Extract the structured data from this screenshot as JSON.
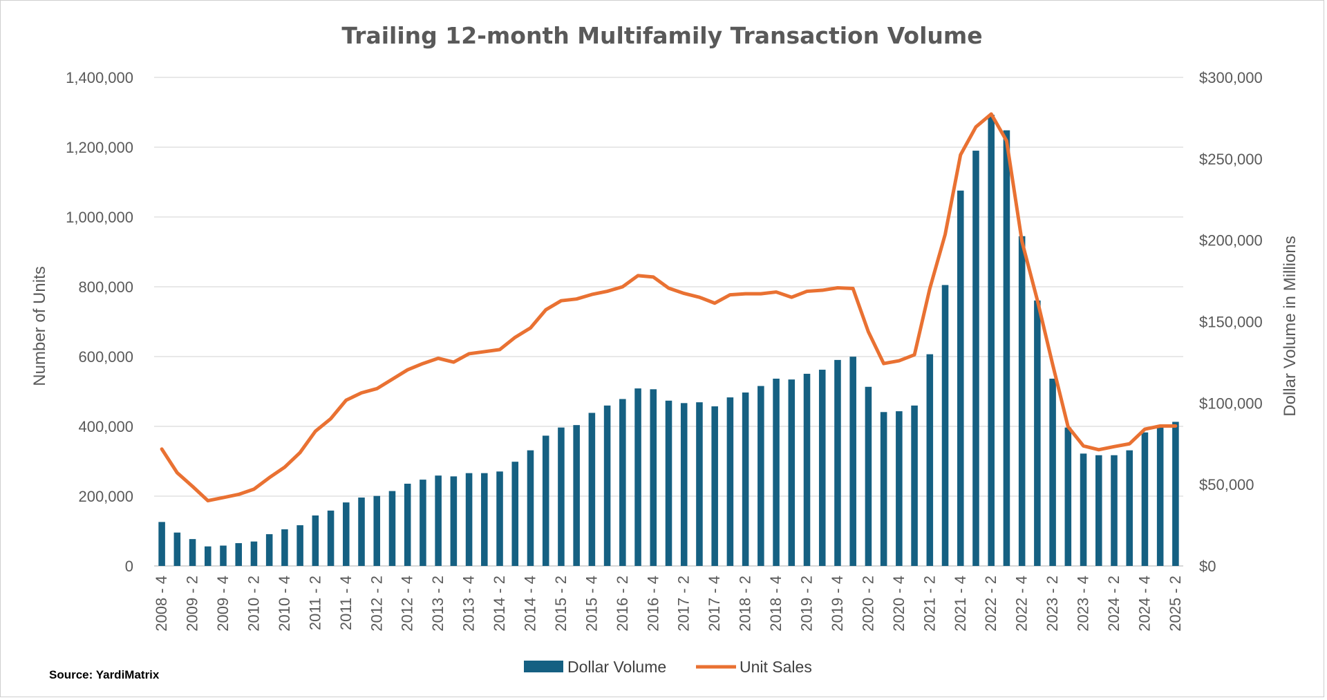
{
  "chart_data": {
    "type": "bar-line-combo",
    "title": "Trailing 12-month Multifamily Transaction Volume",
    "source": "Source: YardiMatrix",
    "y_left_label": "Number of Units",
    "y_right_label": "Dollar Volume in Millions",
    "y_left_lim": [
      0,
      1400000
    ],
    "y_right_lim": [
      0,
      300000
    ],
    "y_left_ticks": [
      {
        "value": 0,
        "label": "0"
      },
      {
        "value": 200000,
        "label": "200,000"
      },
      {
        "value": 400000,
        "label": "400,000"
      },
      {
        "value": 600000,
        "label": "600,000"
      },
      {
        "value": 800000,
        "label": "800,000"
      },
      {
        "value": 1000000,
        "label": "1,000,000"
      },
      {
        "value": 1200000,
        "label": "1,200,000"
      },
      {
        "value": 1400000,
        "label": "1,400,000"
      }
    ],
    "y_right_ticks": [
      {
        "value": 0,
        "label": "$0"
      },
      {
        "value": 50000,
        "label": "$50,000"
      },
      {
        "value": 100000,
        "label": "$100,000"
      },
      {
        "value": 150000,
        "label": "$150,000"
      },
      {
        "value": 200000,
        "label": "$200,000"
      },
      {
        "value": 250000,
        "label": "$250,000"
      },
      {
        "value": 300000,
        "label": "$300,000"
      }
    ],
    "gridlines": true,
    "legend_position": "bottom-center",
    "categories": [
      "2008 - 4",
      "2009 - 1",
      "2009 - 2",
      "2009 - 3",
      "2009 - 4",
      "2010 - 1",
      "2010 - 2",
      "2010 - 3",
      "2010 - 4",
      "2011 - 1",
      "2011 - 2",
      "2011 - 3",
      "2011 - 4",
      "2012 - 1",
      "2012 - 2",
      "2012 - 3",
      "2012 - 4",
      "2013 - 1",
      "2013 - 2",
      "2013 - 3",
      "2013 - 4",
      "2014 - 1",
      "2014 - 2",
      "2014 - 3",
      "2014 - 4",
      "2015 - 1",
      "2015 - 2",
      "2015 - 3",
      "2015 - 4",
      "2016 - 1",
      "2016 - 2",
      "2016 - 3",
      "2016 - 4",
      "2017 - 1",
      "2017 - 2",
      "2017 - 3",
      "2017 - 4",
      "2018 - 1",
      "2018 - 2",
      "2018 - 3",
      "2018 - 4",
      "2019 - 1",
      "2019 - 2",
      "2019 - 3",
      "2019 - 4",
      "2020 - 1",
      "2020 - 2",
      "2020 - 3",
      "2020 - 4",
      "2021 - 1",
      "2021 - 2",
      "2021 - 3",
      "2021 - 4",
      "2022 - 1",
      "2022 - 2",
      "2022 - 3",
      "2022 - 4",
      "2023 - 1",
      "2023 - 2",
      "2023 - 3",
      "2023 - 4",
      "2024 - 1",
      "2024 - 2",
      "2024 - 3",
      "2024 - 4",
      "2025 - 1",
      "2025 - 2"
    ],
    "x_tick_labels": [
      "2008 - 4",
      "2009 - 2",
      "2009 - 4",
      "2010 - 2",
      "2010 - 4",
      "2011 - 2",
      "2011 - 4",
      "2012 - 2",
      "2012 - 4",
      "2013 - 2",
      "2013 - 4",
      "2014 - 2",
      "2014 - 4",
      "2015 - 2",
      "2015 - 4",
      "2016 - 2",
      "2016 - 4",
      "2017 - 2",
      "2017 - 4",
      "2018 - 2",
      "2018 - 4",
      "2019 - 2",
      "2019 - 4",
      "2020 - 2",
      "2020 - 4",
      "2021 - 2",
      "2021 - 4",
      "2022 - 2",
      "2022 - 4",
      "2023 - 2",
      "2023 - 4",
      "2024 - 2",
      "2024 - 4",
      "2025 - 2"
    ],
    "series": [
      {
        "name": "Dollar Volume",
        "type": "bar",
        "axis": "right",
        "color": "#156082",
        "values": [
          27000,
          20500,
          16500,
          12000,
          12500,
          14000,
          15000,
          19500,
          22500,
          25000,
          31000,
          34000,
          39000,
          42000,
          43000,
          46000,
          50500,
          53000,
          55500,
          55000,
          57000,
          57000,
          58000,
          64000,
          71000,
          80000,
          85000,
          86500,
          94000,
          98500,
          102500,
          109000,
          108500,
          101500,
          100000,
          100500,
          98000,
          103500,
          106500,
          110500,
          115000,
          114500,
          118000,
          120500,
          126500,
          128500,
          110000,
          94500,
          95000,
          98500,
          130000,
          172500,
          230500,
          255000,
          277000,
          267500,
          202500,
          163000,
          115000,
          85000,
          69000,
          68000,
          68000,
          71000,
          82000,
          85500,
          88500
        ]
      },
      {
        "name": "Unit Sales",
        "type": "line",
        "axis": "left",
        "color": "#E97132",
        "values": [
          335000,
          267000,
          228000,
          187000,
          196000,
          205000,
          220000,
          253000,
          283000,
          325000,
          386000,
          422000,
          475000,
          496000,
          508000,
          535000,
          562000,
          580000,
          595000,
          584000,
          608000,
          614000,
          620000,
          655000,
          682000,
          734000,
          760000,
          765000,
          778000,
          787000,
          800000,
          832000,
          828000,
          796000,
          781000,
          770000,
          753000,
          777000,
          780000,
          780000,
          785000,
          770000,
          787000,
          790000,
          797000,
          795000,
          671000,
          580000,
          588000,
          605000,
          795000,
          950000,
          1178000,
          1258000,
          1295000,
          1218000,
          930000,
          762000,
          577000,
          399000,
          344000,
          333000,
          342000,
          350000,
          392000,
          401000,
          401000
        ]
      }
    ]
  }
}
